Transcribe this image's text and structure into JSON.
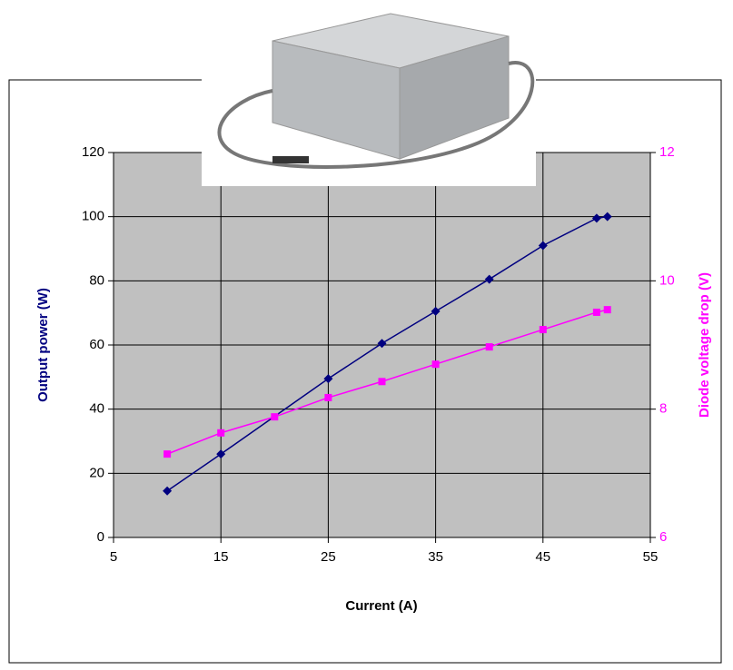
{
  "chart_data": {
    "type": "line",
    "x_label": "Current (A)",
    "y_label": "Output power (W)",
    "y2_label": "Diode voltage drop (V)",
    "xlim": [
      5,
      55
    ],
    "xticks": [
      5,
      15,
      25,
      35,
      45,
      55
    ],
    "ylim": [
      0,
      120
    ],
    "yticks": [
      0,
      20,
      40,
      60,
      80,
      100,
      120
    ],
    "y2lim": [
      6,
      12
    ],
    "y2ticks": [
      6,
      8,
      10,
      12
    ],
    "grid": true,
    "series": [
      {
        "name": "Output power (W)",
        "color": "#000080",
        "marker": "diamond",
        "x": [
          10,
          15,
          25,
          30,
          35,
          40,
          45,
          50,
          51
        ],
        "values": [
          14.5,
          26,
          49.5,
          60.5,
          70.5,
          80.5,
          91,
          99.5,
          100
        ]
      },
      {
        "name": "Diode voltage drop (V)",
        "color": "#ff00ff",
        "marker": "square",
        "axis": "y2",
        "x": [
          10,
          15,
          20,
          25,
          30,
          35,
          40,
          45,
          50,
          51
        ],
        "values": [
          7.3,
          7.63,
          7.88,
          8.18,
          8.43,
          8.7,
          8.97,
          9.24,
          9.51,
          9.55
        ]
      }
    ]
  }
}
